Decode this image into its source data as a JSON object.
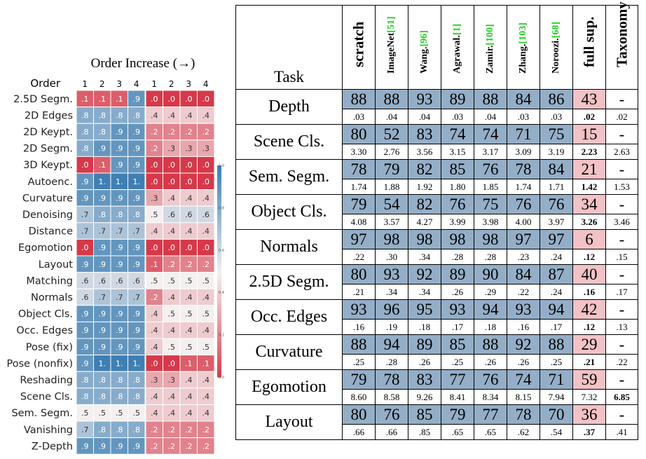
{
  "chart_data": [
    {
      "type": "heatmap",
      "title": "Order Increase (→)",
      "ylabel": "Order",
      "x_ticks_left": [
        "1",
        "2",
        "3",
        "4"
      ],
      "x_ticks_right": [
        "1",
        "2",
        "3",
        "4"
      ],
      "colorbar_ticks": [
        "0.0",
        "0.2",
        "0.4",
        "0.6",
        "0.8",
        "1.0"
      ],
      "colormap": {
        "low": "#d6394a",
        "mid": "#f4f0ef",
        "high": "#3f7fb3"
      },
      "rows": [
        "2.5D Segm.",
        "2D Edges",
        "2D Keypt.",
        "2D Segm.",
        "3D Keypt.",
        "Autoenc.",
        "Curvature",
        "Denoising",
        "Distance",
        "Egomotion",
        "Layout",
        "Matching",
        "Normals",
        "Object Cls.",
        "Occ. Edges",
        "Pose (fix)",
        "Pose (nonfix)",
        "Reshading",
        "Scene Cls.",
        "Sem. Segm.",
        "Vanishing",
        "Z-Depth"
      ],
      "left_values": [
        [
          0.1,
          0.1,
          0.1,
          0.9
        ],
        [
          0.8,
          0.8,
          0.8,
          0.8
        ],
        [
          0.8,
          0.8,
          0.9,
          0.9
        ],
        [
          0.8,
          0.9,
          0.9,
          0.9
        ],
        [
          0.0,
          0.1,
          0.9,
          0.9
        ],
        [
          0.9,
          1.0,
          1.0,
          1.0
        ],
        [
          0.9,
          0.9,
          0.9,
          0.9
        ],
        [
          0.7,
          0.8,
          0.8,
          0.8
        ],
        [
          0.7,
          0.7,
          0.7,
          0.7
        ],
        [
          0.0,
          0.9,
          0.9,
          0.9
        ],
        [
          0.9,
          0.9,
          0.9,
          0.9
        ],
        [
          0.6,
          0.6,
          0.6,
          0.6
        ],
        [
          0.6,
          0.7,
          0.7,
          0.7
        ],
        [
          0.9,
          0.9,
          0.9,
          0.9
        ],
        [
          0.9,
          0.9,
          0.9,
          0.9
        ],
        [
          0.9,
          0.9,
          0.9,
          0.9
        ],
        [
          0.9,
          1.0,
          1.0,
          1.0
        ],
        [
          0.8,
          0.8,
          0.8,
          0.8
        ],
        [
          0.8,
          0.8,
          0.8,
          0.8
        ],
        [
          0.5,
          0.5,
          0.5,
          0.5
        ],
        [
          0.7,
          0.8,
          0.8,
          0.8
        ],
        [
          0.9,
          0.9,
          0.9,
          0.9
        ]
      ],
      "left_labels": [
        [
          ".1",
          ".1",
          ".1",
          ".9"
        ],
        [
          ".8",
          ".8",
          ".8",
          ".8"
        ],
        [
          ".8",
          ".8",
          ".9",
          ".9"
        ],
        [
          ".8",
          ".9",
          ".9",
          ".9"
        ],
        [
          ".0",
          ".1",
          ".9",
          ".9"
        ],
        [
          ".9",
          "1.",
          "1.",
          "1."
        ],
        [
          ".9",
          ".9",
          ".9",
          ".9"
        ],
        [
          ".7",
          ".8",
          ".8",
          ".8"
        ],
        [
          ".7",
          ".7",
          ".7",
          ".7"
        ],
        [
          ".0",
          ".9",
          ".9",
          ".9"
        ],
        [
          ".9",
          ".9",
          ".9",
          ".9"
        ],
        [
          ".6",
          ".6",
          ".6",
          ".6"
        ],
        [
          ".6",
          ".7",
          ".7",
          ".7"
        ],
        [
          ".9",
          ".9",
          ".9",
          ".9"
        ],
        [
          ".9",
          ".9",
          ".9",
          ".9"
        ],
        [
          ".9",
          ".9",
          ".9",
          ".9"
        ],
        [
          ".9",
          "1.",
          "1.",
          "1."
        ],
        [
          ".8",
          ".8",
          ".8",
          ".8"
        ],
        [
          ".8",
          ".8",
          ".8",
          ".8"
        ],
        [
          ".5",
          ".5",
          ".5",
          ".5"
        ],
        [
          ".7",
          ".8",
          ".8",
          ".8"
        ],
        [
          ".9",
          ".9",
          ".9",
          ".9"
        ]
      ],
      "right_values": [
        [
          0.0,
          0.0,
          0.0,
          0.0
        ],
        [
          0.4,
          0.4,
          0.4,
          0.4
        ],
        [
          0.2,
          0.2,
          0.2,
          0.2
        ],
        [
          0.2,
          0.3,
          0.3,
          0.3
        ],
        [
          0.0,
          0.0,
          0.0,
          0.0
        ],
        [
          0.0,
          0.0,
          0.0,
          0.0
        ],
        [
          0.3,
          0.4,
          0.4,
          0.4
        ],
        [
          0.5,
          0.6,
          0.6,
          0.6
        ],
        [
          0.4,
          0.4,
          0.4,
          0.4
        ],
        [
          0.0,
          0.0,
          0.0,
          0.0
        ],
        [
          0.1,
          0.2,
          0.2,
          0.2
        ],
        [
          0.5,
          0.5,
          0.5,
          0.5
        ],
        [
          0.2,
          0.4,
          0.4,
          0.4
        ],
        [
          0.4,
          0.5,
          0.5,
          0.5
        ],
        [
          0.4,
          0.4,
          0.4,
          0.4
        ],
        [
          0.4,
          0.5,
          0.5,
          0.5
        ],
        [
          0.0,
          0.0,
          0.1,
          0.1
        ],
        [
          0.3,
          0.3,
          0.4,
          0.4
        ],
        [
          0.4,
          0.4,
          0.4,
          0.4
        ],
        [
          0.4,
          0.4,
          0.4,
          0.4
        ],
        [
          0.2,
          0.2,
          0.2,
          0.2
        ],
        [
          0.2,
          0.2,
          0.2,
          0.2
        ]
      ],
      "right_labels": [
        [
          ".0",
          ".0",
          ".0",
          ".0"
        ],
        [
          ".4",
          ".4",
          ".4",
          ".4"
        ],
        [
          ".2",
          ".2",
          ".2",
          ".2"
        ],
        [
          ".2",
          ".3",
          ".3",
          ".3"
        ],
        [
          ".0",
          ".0",
          ".0",
          ".0"
        ],
        [
          ".0",
          ".0",
          ".0",
          ".0"
        ],
        [
          ".3",
          ".4",
          ".4",
          ".4"
        ],
        [
          ".5",
          ".6",
          ".6",
          ".6"
        ],
        [
          ".4",
          ".4",
          ".4",
          ".4"
        ],
        [
          ".0",
          ".0",
          ".0",
          ".0"
        ],
        [
          ".1",
          ".2",
          ".2",
          ".2"
        ],
        [
          ".5",
          ".5",
          ".5",
          ".5"
        ],
        [
          ".2",
          ".4",
          ".4",
          ".4"
        ],
        [
          ".4",
          ".5",
          ".5",
          ".5"
        ],
        [
          ".4",
          ".4",
          ".4",
          ".4"
        ],
        [
          ".4",
          ".5",
          ".5",
          ".5"
        ],
        [
          ".0",
          ".0",
          ".1",
          ".1"
        ],
        [
          ".3",
          ".3",
          ".4",
          ".4"
        ],
        [
          ".4",
          ".4",
          ".4",
          ".4"
        ],
        [
          ".4",
          ".4",
          ".4",
          ".4"
        ],
        [
          ".2",
          ".2",
          ".2",
          ".2"
        ],
        [
          ".2",
          ".2",
          ".2",
          ".2"
        ]
      ]
    },
    {
      "type": "table",
      "header": {
        "task": "Task"
      },
      "columns": [
        {
          "label": "scratch",
          "style": "big"
        },
        {
          "label": "ImageNet",
          "cite": "[51]",
          "style": "small"
        },
        {
          "label": "Wang.",
          "cite": "[96]",
          "style": "small"
        },
        {
          "label": "Agrawal.",
          "cite": "[1]",
          "style": "small"
        },
        {
          "label": "Zamir.",
          "cite": "[100]",
          "style": "small"
        },
        {
          "label": "Zhang.",
          "cite": "[103]",
          "style": "small"
        },
        {
          "label": "Noroozi.",
          "cite": "[68]",
          "style": "small"
        },
        {
          "label": "full sup.",
          "style": "big"
        },
        {
          "label": "Taxonomy",
          "style": "big"
        }
      ],
      "rows": [
        {
          "task": "Depth",
          "pct": [
            "88",
            "88",
            "93",
            "89",
            "88",
            "84",
            "86",
            "43",
            "-"
          ],
          "loss": [
            ".03",
            ".04",
            ".04",
            ".03",
            ".04",
            ".03",
            ".03",
            ".02",
            ".02"
          ],
          "bold": 7
        },
        {
          "task": "Scene Cls.",
          "pct": [
            "80",
            "52",
            "83",
            "74",
            "74",
            "71",
            "75",
            "15",
            "-"
          ],
          "loss": [
            "3.30",
            "2.76",
            "3.56",
            "3.15",
            "3.17",
            "3.09",
            "3.19",
            "2.23",
            "2.63"
          ],
          "bold": 7
        },
        {
          "task": "Sem. Segm.",
          "pct": [
            "78",
            "79",
            "82",
            "85",
            "76",
            "78",
            "84",
            "21",
            "-"
          ],
          "loss": [
            "1.74",
            "1.88",
            "1.92",
            "1.80",
            "1.85",
            "1.74",
            "1.71",
            "1.42",
            "1.53"
          ],
          "bold": 7
        },
        {
          "task": "Object Cls.",
          "pct": [
            "79",
            "54",
            "82",
            "76",
            "75",
            "76",
            "76",
            "34",
            "-"
          ],
          "loss": [
            "4.08",
            "3.57",
            "4.27",
            "3.99",
            "3.98",
            "4.00",
            "3.97",
            "3.26",
            "3.46"
          ],
          "bold": 7
        },
        {
          "task": "Normals",
          "pct": [
            "97",
            "98",
            "98",
            "98",
            "98",
            "97",
            "97",
            "6",
            "-"
          ],
          "loss": [
            ".22",
            ".30",
            ".34",
            ".28",
            ".28",
            ".23",
            ".24",
            ".12",
            ".15"
          ],
          "bold": 7
        },
        {
          "task": "2.5D Segm.",
          "pct": [
            "80",
            "93",
            "92",
            "89",
            "90",
            "84",
            "87",
            "40",
            "-"
          ],
          "loss": [
            ".21",
            ".34",
            ".34",
            ".26",
            ".29",
            ".22",
            ".24",
            ".16",
            ".17"
          ],
          "bold": 7
        },
        {
          "task": "Occ. Edges",
          "pct": [
            "93",
            "96",
            "95",
            "93",
            "94",
            "93",
            "94",
            "42",
            "-"
          ],
          "loss": [
            ".16",
            ".19",
            ".18",
            ".17",
            ".18",
            ".16",
            ".17",
            ".12",
            ".13"
          ],
          "bold": 7
        },
        {
          "task": "Curvature",
          "pct": [
            "88",
            "94",
            "89",
            "85",
            "88",
            "92",
            "88",
            "29",
            "-"
          ],
          "loss": [
            ".25",
            ".28",
            ".26",
            ".25",
            ".26",
            ".26",
            ".25",
            ".21",
            ".22"
          ],
          "bold": 7
        },
        {
          "task": "Egomotion",
          "pct": [
            "79",
            "78",
            "83",
            "77",
            "76",
            "74",
            "71",
            "59",
            "-"
          ],
          "loss": [
            "8.60",
            "8.58",
            "9.26",
            "8.41",
            "8.34",
            "8.15",
            "7.94",
            "7.32",
            "6.85"
          ],
          "bold": 8
        },
        {
          "task": "Layout",
          "pct": [
            "80",
            "76",
            "85",
            "79",
            "77",
            "78",
            "70",
            "36",
            "-"
          ],
          "loss": [
            ".66",
            ".66",
            ".85",
            ".65",
            ".65",
            ".62",
            ".54",
            ".37",
            ".41"
          ],
          "bold": 7
        }
      ]
    }
  ]
}
